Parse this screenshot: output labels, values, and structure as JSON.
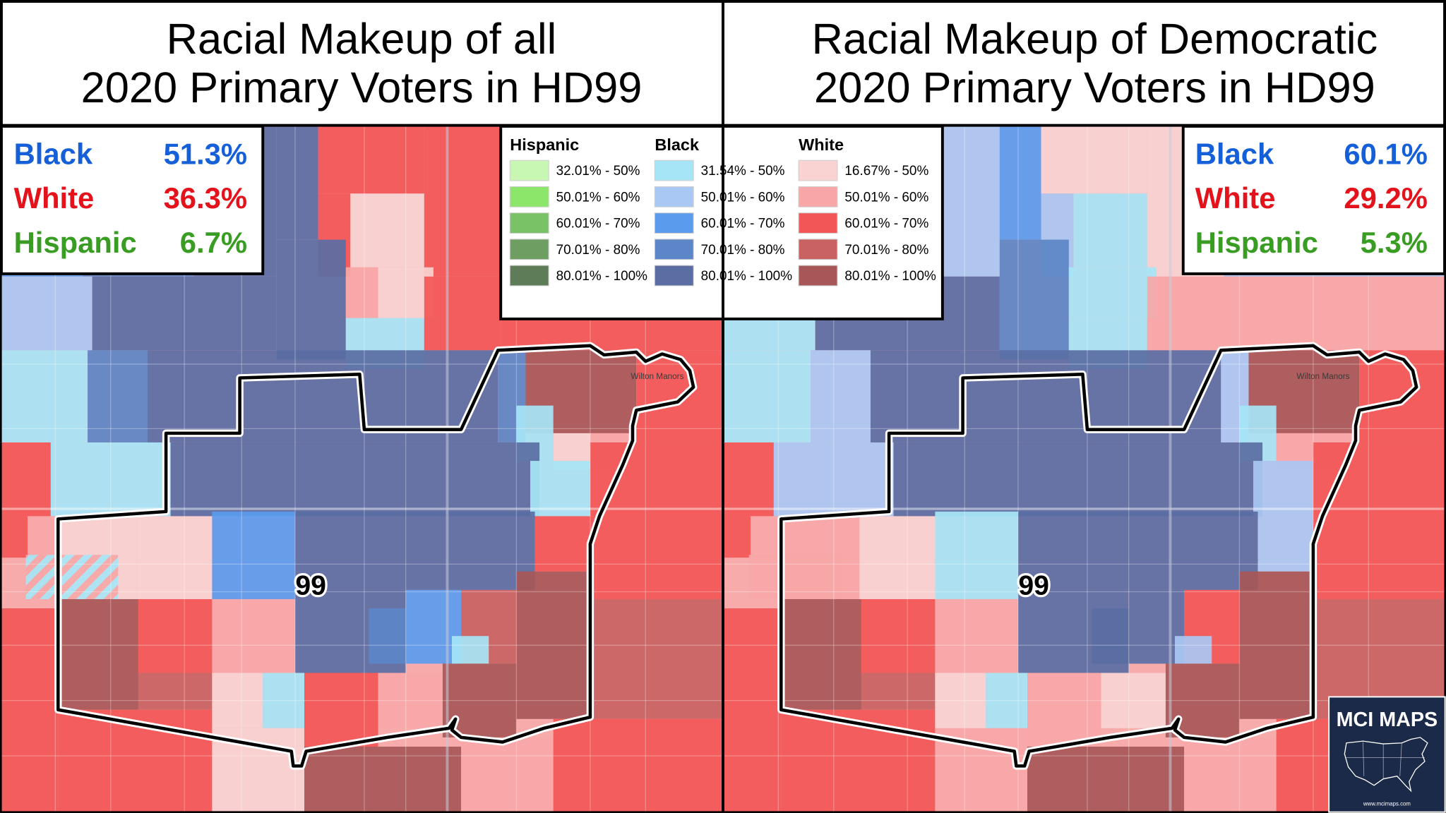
{
  "panels": [
    {
      "title": [
        "Racial Makeup of all",
        "2020 Primary Voters in HD99"
      ],
      "stats": [
        {
          "label": "Black",
          "value": "51.3%",
          "color": "#1560d8"
        },
        {
          "label": "White",
          "value": "36.3%",
          "color": "#e3121b"
        },
        {
          "label": "Hispanic",
          "value": "6.7%",
          "color": "#3a9d23"
        }
      ],
      "district_label": "99",
      "place_label": "Wilton Manors"
    },
    {
      "title": [
        "Racial Makeup of Democratic",
        "2020 Primary Voters in HD99"
      ],
      "stats": [
        {
          "label": "Black",
          "value": "60.1%",
          "color": "#1560d8"
        },
        {
          "label": "White",
          "value": "29.2%",
          "color": "#e3121b"
        },
        {
          "label": "Hispanic",
          "value": "5.3%",
          "color": "#3a9d23"
        }
      ],
      "district_label": "99",
      "place_label": "Wilton Manors"
    }
  ],
  "legend": {
    "groups": [
      {
        "name": "Hispanic",
        "entries": [
          {
            "label": "32.01% - 50%",
            "color": "#c8f7b4"
          },
          {
            "label": "50.01% - 60%",
            "color": "#8be66a"
          },
          {
            "label": "60.01% - 70%",
            "color": "#79c266"
          },
          {
            "label": "70.01% - 80%",
            "color": "#6f9e63"
          },
          {
            "label": "80.01% - 100%",
            "color": "#5f7c58"
          }
        ]
      },
      {
        "name": "Black",
        "entries": [
          {
            "label": "31.54% - 50%",
            "color": "#a6e5f6"
          },
          {
            "label": "50.01% - 60%",
            "color": "#a9c8f4"
          },
          {
            "label": "60.01% - 70%",
            "color": "#5a9bee"
          },
          {
            "label": "70.01% - 80%",
            "color": "#5c86c7"
          },
          {
            "label": "80.01% - 100%",
            "color": "#5a6ea4"
          }
        ]
      },
      {
        "name": "White",
        "entries": [
          {
            "label": "16.67% - 50%",
            "color": "#f9d2d2"
          },
          {
            "label": "50.01% - 60%",
            "color": "#f7a7a7"
          },
          {
            "label": "60.01% - 70%",
            "color": "#f25656"
          },
          {
            "label": "70.01% - 80%",
            "color": "#c96262"
          },
          {
            "label": "80.01% - 100%",
            "color": "#a75757"
          }
        ]
      }
    ]
  },
  "map_base_color": "#e9ddd6",
  "logo": {
    "title": "MCI MAPS",
    "url": "www.mcimaps.com",
    "background": "#1c2a4a"
  }
}
